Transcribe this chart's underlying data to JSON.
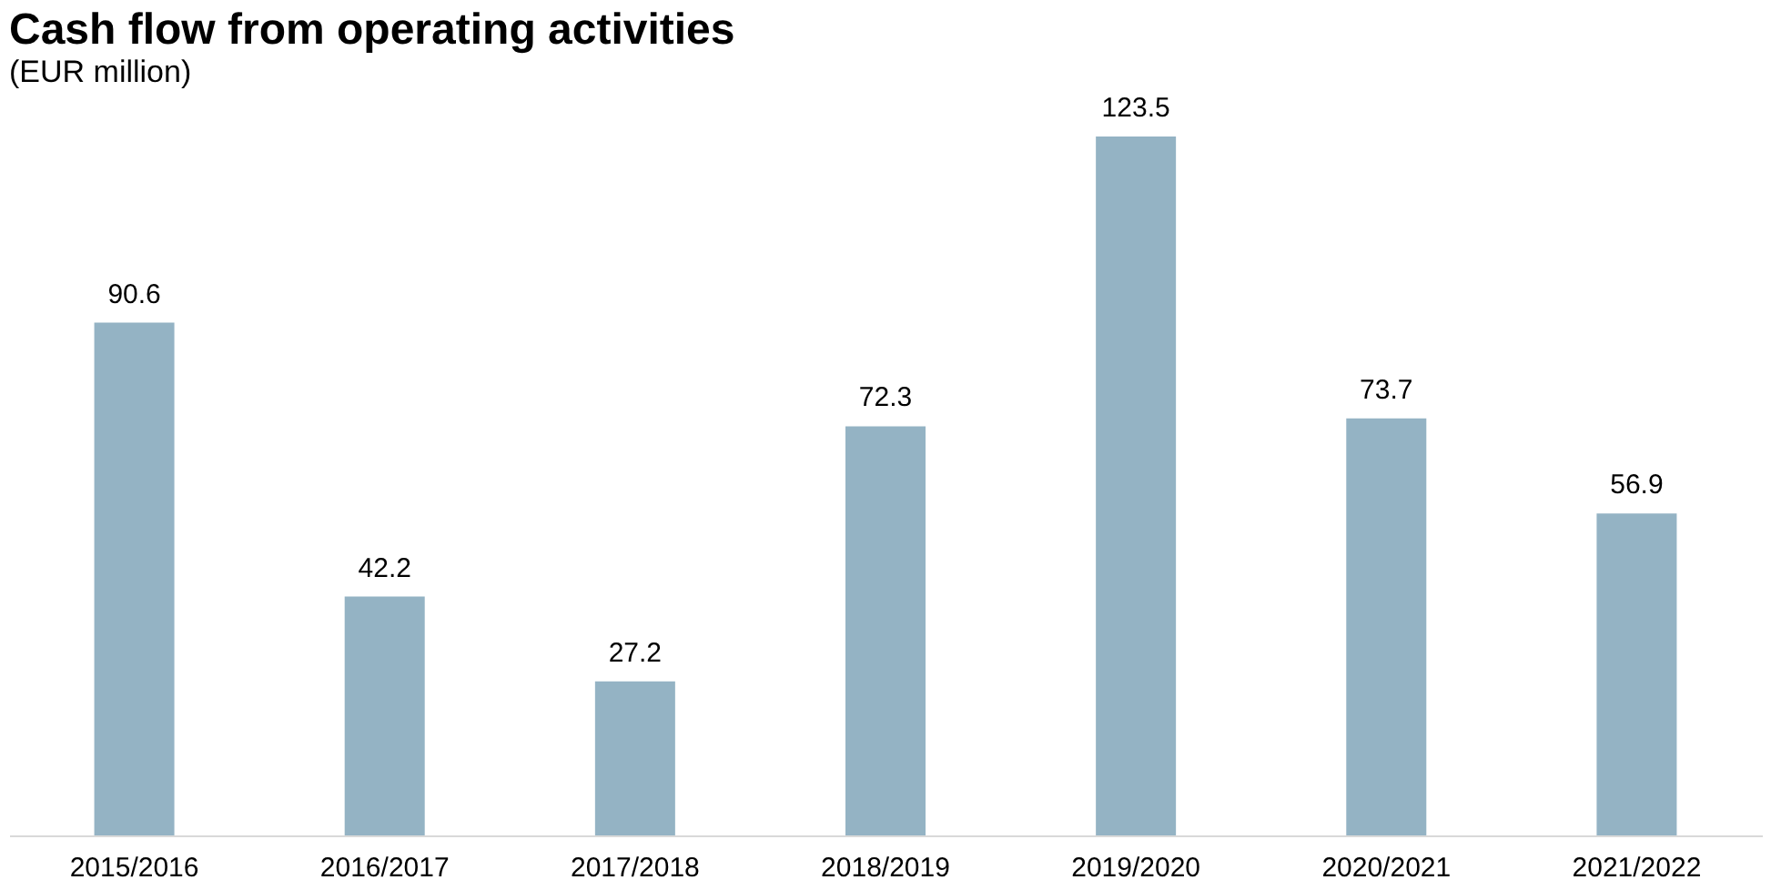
{
  "chart_data": {
    "type": "bar",
    "title": "Cash flow from operating activities",
    "subtitle": "(EUR million)",
    "categories": [
      "2015/2016",
      "2016/2017",
      "2017/2018",
      "2018/2019",
      "2019/2020",
      "2020/2021",
      "2021/2022"
    ],
    "values": [
      90.6,
      42.2,
      27.2,
      72.3,
      123.5,
      73.7,
      56.9
    ],
    "color": "#94b3c4",
    "data_labels": true,
    "grid": false
  }
}
